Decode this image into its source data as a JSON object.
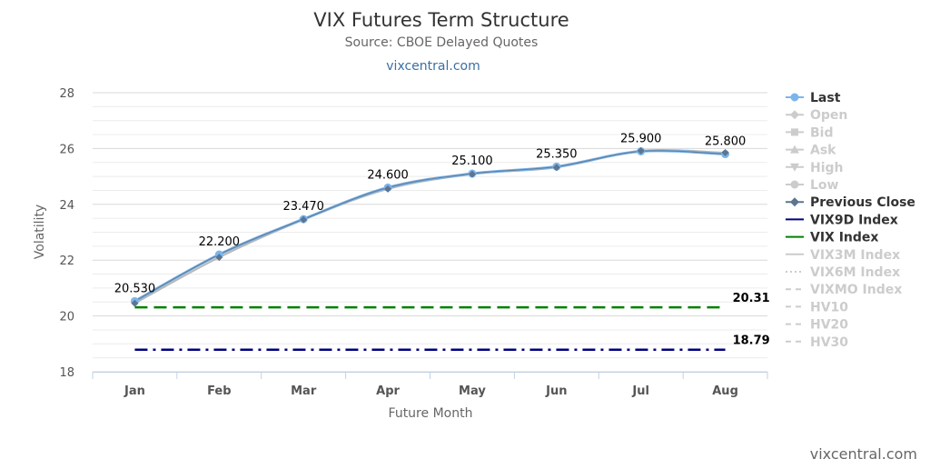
{
  "header": {
    "title": "VIX Futures Term Structure",
    "subtitle": "Source: CBOE Delayed Quotes",
    "link": "vixcentral.com"
  },
  "footer": {
    "credit": "vixcentral.com"
  },
  "chart_data": {
    "type": "line",
    "xlabel": "Future Month",
    "ylabel": "Volatility",
    "ylim": [
      18,
      28
    ],
    "yticks": [
      18,
      20,
      22,
      24,
      26,
      28
    ],
    "grid": true,
    "legend_position": "right",
    "categories": [
      "Jan",
      "Feb",
      "Mar",
      "Apr",
      "May",
      "Jun",
      "Jul",
      "Aug"
    ],
    "series": [
      {
        "name": "Last",
        "values": [
          20.53,
          22.2,
          23.47,
          24.6,
          25.1,
          25.35,
          25.9,
          25.8
        ],
        "color": "#7cb5ec",
        "data_labels": [
          "20.530",
          "22.200",
          "23.470",
          "24.600",
          "25.100",
          "25.350",
          "25.900",
          "25.800"
        ]
      },
      {
        "name": "Previous Close",
        "values": [
          20.45,
          22.1,
          23.45,
          24.55,
          25.08,
          25.32,
          25.92,
          25.85
        ],
        "color": "#5c7590"
      },
      {
        "name": "VIX9D Index",
        "values": [
          18.79,
          18.79,
          18.79,
          18.79,
          18.79,
          18.79,
          18.79,
          18.79
        ],
        "color": "#000080",
        "end_label": "18.79"
      },
      {
        "name": "VIX Index",
        "values": [
          20.31,
          20.31,
          20.31,
          20.31,
          20.31,
          20.31,
          20.31,
          20.31
        ],
        "color": "#008000",
        "end_label": "20.31"
      }
    ],
    "legend": [
      {
        "name": "Last",
        "active": true,
        "symbol": "circle",
        "color": "#7cb5ec"
      },
      {
        "name": "Open",
        "active": false,
        "symbol": "diamond"
      },
      {
        "name": "Bid",
        "active": false,
        "symbol": "square"
      },
      {
        "name": "Ask",
        "active": false,
        "symbol": "triangle"
      },
      {
        "name": "High",
        "active": false,
        "symbol": "triangle-down"
      },
      {
        "name": "Low",
        "active": false,
        "symbol": "circle"
      },
      {
        "name": "Previous Close",
        "active": true,
        "symbol": "diamond",
        "color": "#5c7590"
      },
      {
        "name": "VIX9D Index",
        "active": true,
        "symbol": "line",
        "color": "#000080"
      },
      {
        "name": "VIX Index",
        "active": true,
        "symbol": "line",
        "color": "#008000"
      },
      {
        "name": "VIX3M Index",
        "active": false,
        "symbol": "line"
      },
      {
        "name": "VIX6M Index",
        "active": false,
        "symbol": "dotted"
      },
      {
        "name": "VIXMO Index",
        "active": false,
        "symbol": "dashed"
      },
      {
        "name": "HV10",
        "active": false,
        "symbol": "dashed"
      },
      {
        "name": "HV20",
        "active": false,
        "symbol": "dashed"
      },
      {
        "name": "HV30",
        "active": false,
        "symbol": "dashed"
      }
    ]
  }
}
